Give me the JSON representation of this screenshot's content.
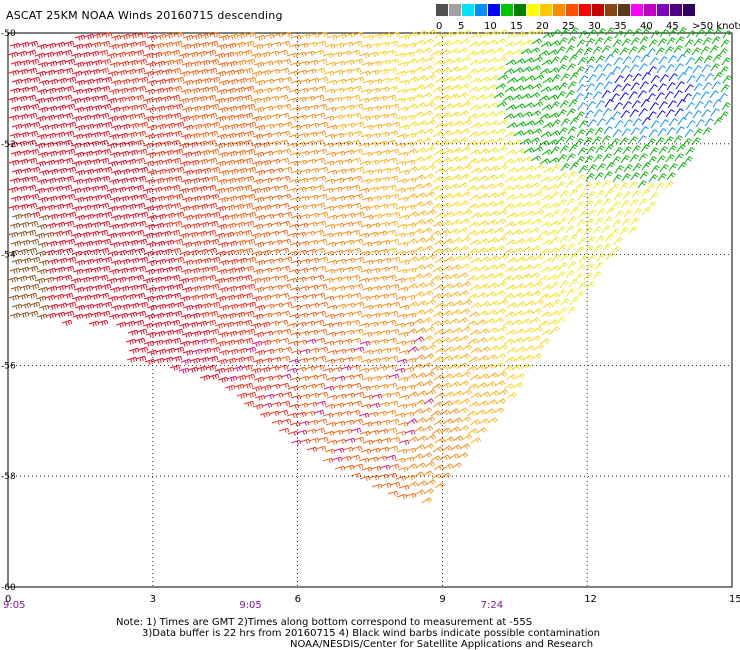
{
  "header": {
    "title": "ASCAT 25KM NOAA Winds 20160715 descending"
  },
  "legend": {
    "swatches": [
      {
        "color": "#505050"
      },
      {
        "color": "#a0a0a0"
      },
      {
        "color": "#00e0ff"
      },
      {
        "color": "#0090ff"
      },
      {
        "color": "#0000ff"
      },
      {
        "color": "#00c800"
      },
      {
        "color": "#008000"
      },
      {
        "color": "#ffff00"
      },
      {
        "color": "#ffc800"
      },
      {
        "color": "#ff8c00"
      },
      {
        "color": "#ff5000"
      },
      {
        "color": "#ff0000"
      },
      {
        "color": "#c80000"
      },
      {
        "color": "#8b4513"
      },
      {
        "color": "#5a3a1a"
      },
      {
        "color": "#ff00ff"
      },
      {
        "color": "#c000c0"
      },
      {
        "color": "#8000c0"
      },
      {
        "color": "#500080"
      },
      {
        "color": "#300060"
      }
    ],
    "labels": [
      "0",
      "5",
      "10",
      "15",
      "20",
      "25",
      "30",
      "35",
      "40",
      "45",
      ">50 knots"
    ]
  },
  "axes": {
    "y_labels": [
      "-50",
      "-52",
      "-54",
      "-56",
      "-58",
      "-60"
    ],
    "x_labels": [
      "0",
      "3",
      "6",
      "9",
      "12",
      "15"
    ],
    "time_labels": [
      "9:05",
      "9:05",
      "7:24"
    ]
  },
  "notes": {
    "line1": "Note: 1) Times are GMT 2)Times along bottom correspond to measurement at -55S",
    "line2": "3)Data buffer is 22 hrs from 20160715 4) Black wind barbs indicate possible contamination",
    "line3": "NOAA/NESDIS/Center for Satellite Applications and Research"
  },
  "map_data": {
    "lon_range": [
      0,
      15
    ],
    "lat_range": [
      -60,
      -50
    ],
    "swath_polygon": [
      [
        -0.2,
        -50.2
      ],
      [
        2.2,
        -50.0
      ],
      [
        15.0,
        -50.0
      ],
      [
        14.8,
        -51.5
      ],
      [
        13.0,
        -53.5
      ],
      [
        11.0,
        -55.8
      ],
      [
        9.0,
        -58.2
      ],
      [
        8.6,
        -58.5
      ],
      [
        7.6,
        -58.3
      ],
      [
        6.0,
        -57.5
      ],
      [
        4.5,
        -56.5
      ],
      [
        3.5,
        -56.1
      ],
      [
        2.3,
        -55.9
      ],
      [
        2.4,
        -55.3
      ],
      [
        0.0,
        -55.2
      ],
      [
        -0.2,
        -54.8
      ]
    ]
  }
}
